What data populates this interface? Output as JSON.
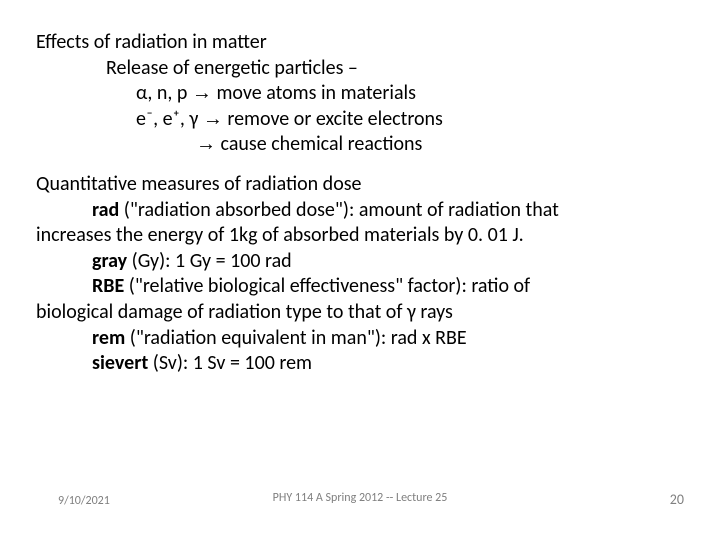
{
  "para1": {
    "l1": "Effects of radiation in matter",
    "l2": "Release of energetic particles –",
    "l3_pre": "α, n, p ",
    "l3_post": " move atoms in materials",
    "l4_pre": "e⁻, e⁺, γ ",
    "l4_post": " remove or excite electrons",
    "l5_post": " cause   chemical reactions"
  },
  "para2": {
    "l1": "Quantitative measures of radiation dose",
    "rad_term": "rad",
    "rad_def": " (\"radiation absorbed dose\"): amount of radiation that",
    "l3": "increases the energy of 1kg of absorbed materials by 0. 01 J.",
    "gray_term": "gray",
    "gray_def": " (Gy):  1 Gy = 100 rad",
    "rbe_term": "RBE",
    "rbe_def": " (\"relative biological effectiveness\" factor): ratio of",
    "l6": "biological damage of radiation type to that of γ rays",
    "rem_term": "rem",
    "rem_def": " (\"radiation equivalent in man\"): rad x RBE",
    "siev_term": "sievert",
    "siev_def": " (Sv): 1 Sv = 100 rem"
  },
  "footer": {
    "date": "9/10/2021",
    "center": "PHY 114 A  Spring 2012 -- Lecture 25",
    "page": "20"
  },
  "glyphs": {
    "arrow": "→"
  }
}
